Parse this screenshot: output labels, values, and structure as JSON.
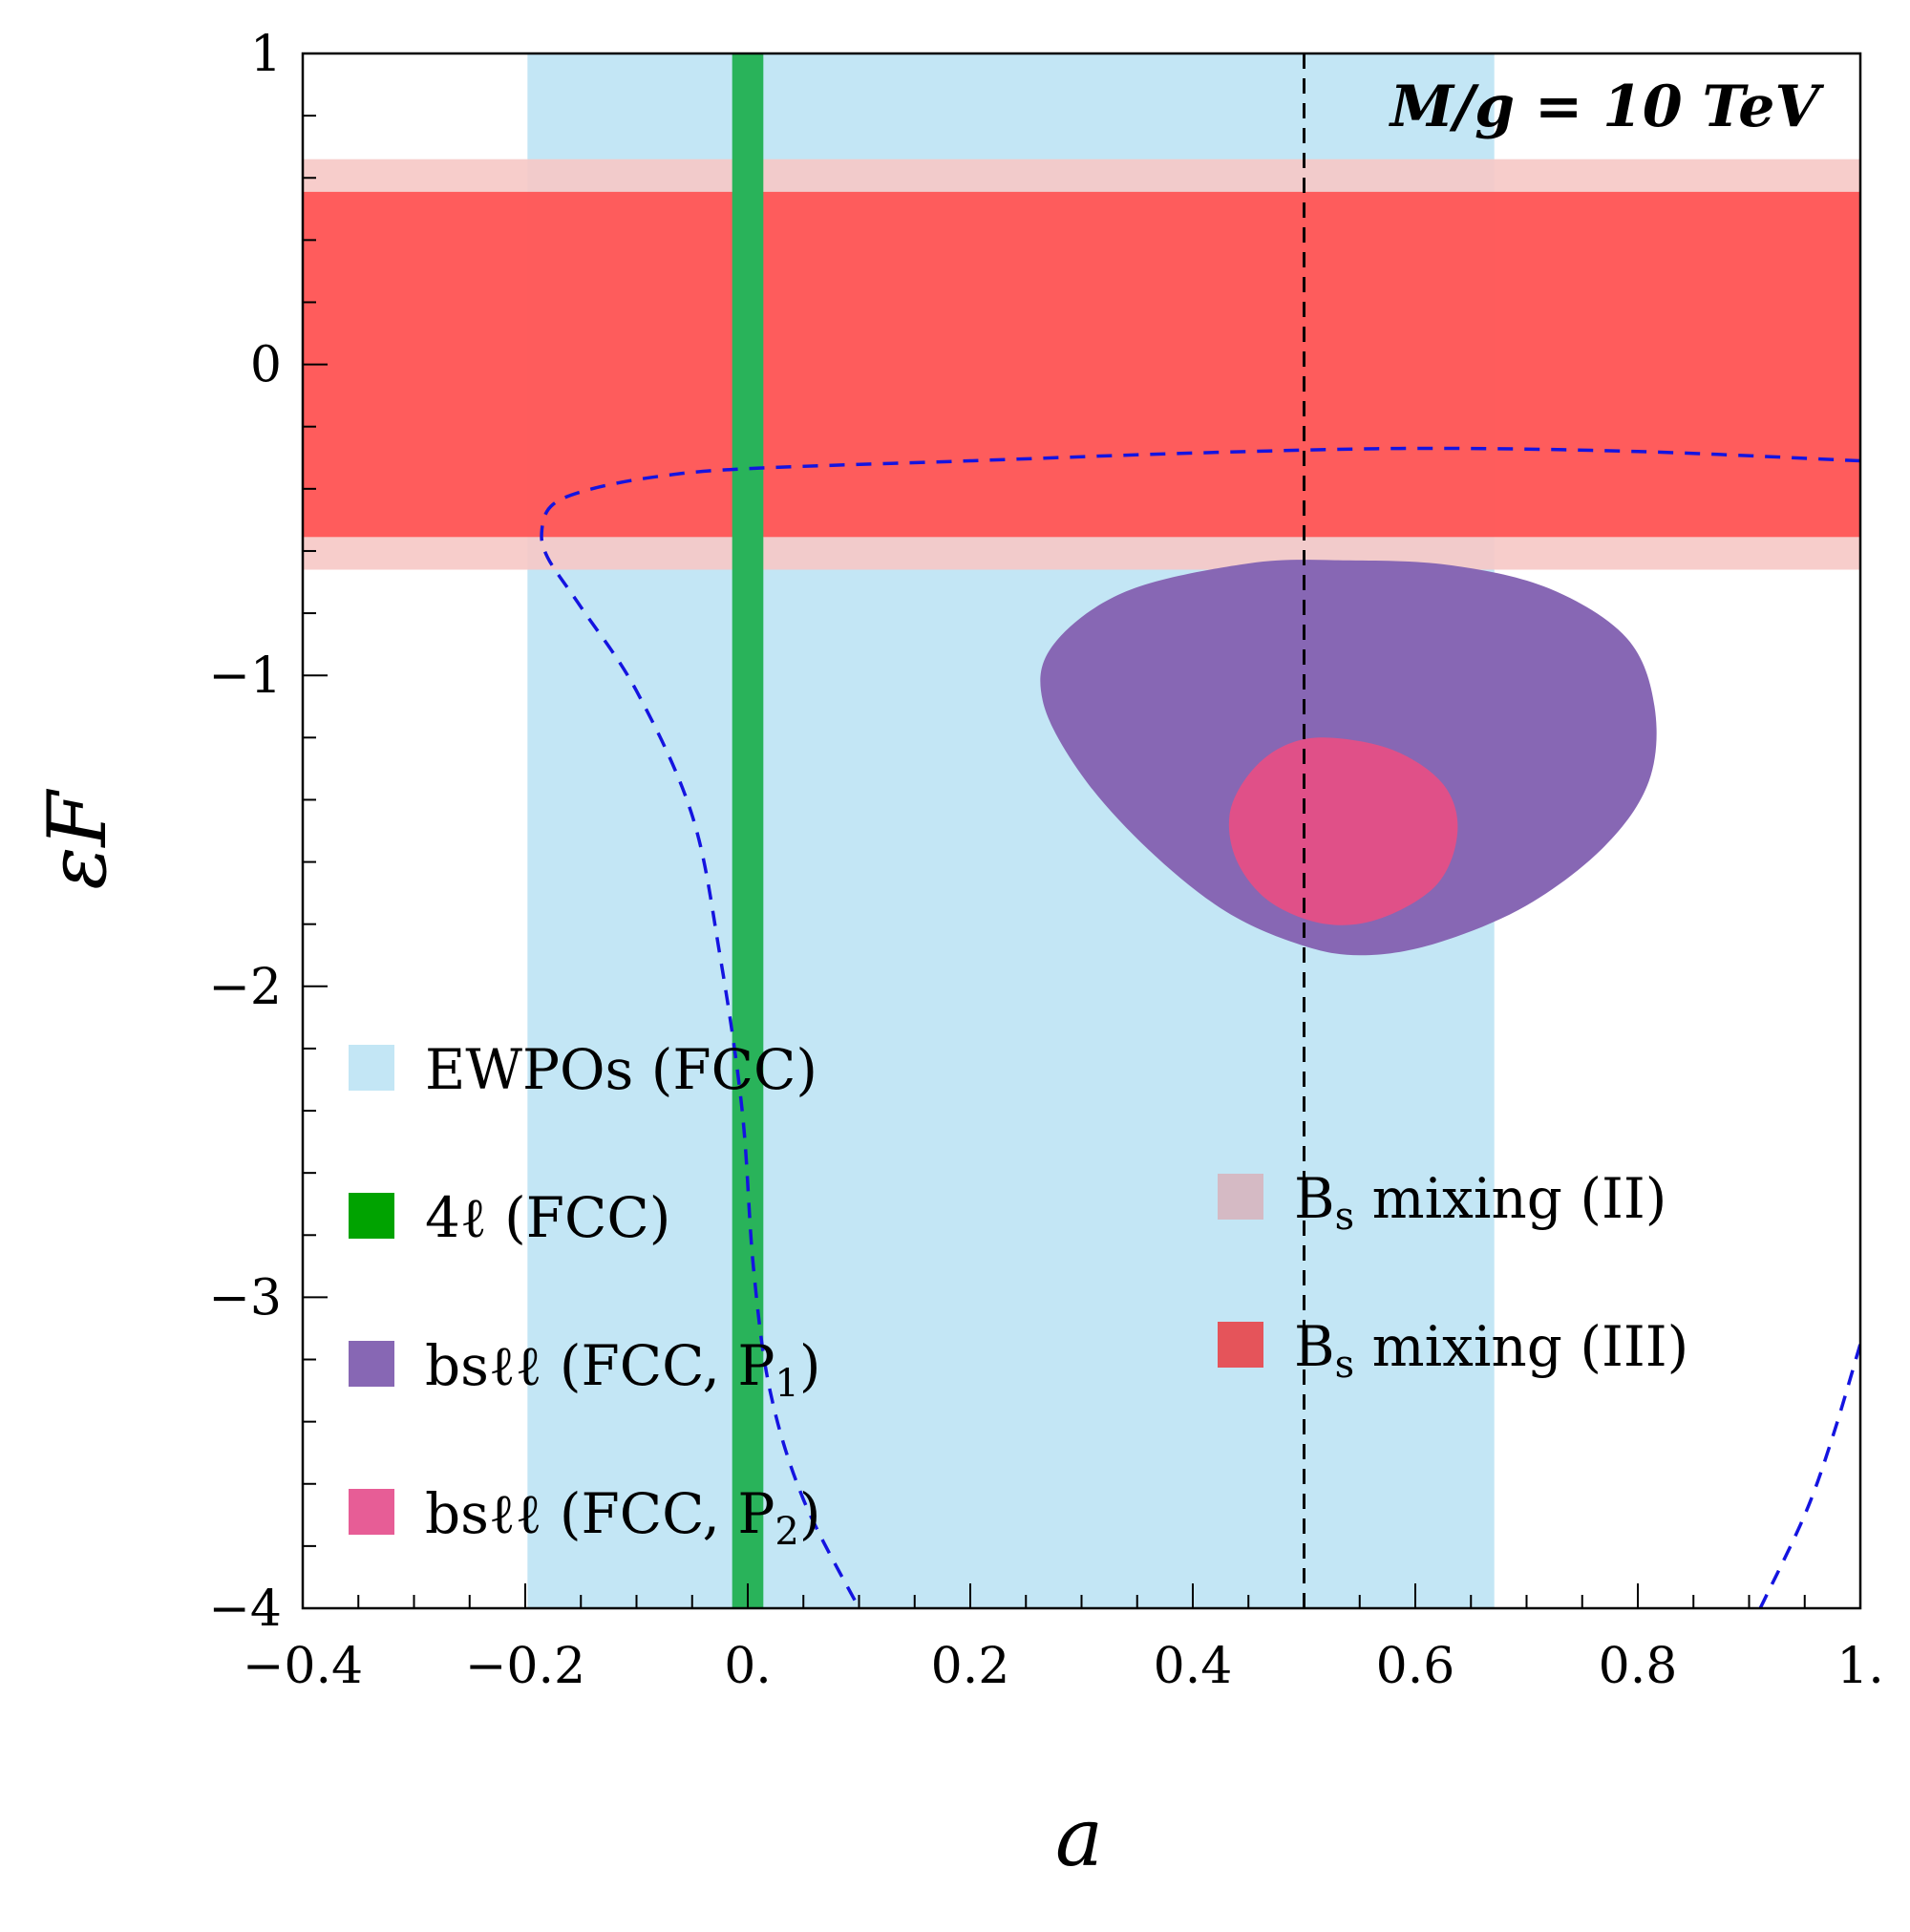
{
  "chart_data": {
    "type": "region",
    "title": "",
    "xlabel": "a",
    "ylabel": "εF",
    "xlim": [
      -0.4,
      1.0
    ],
    "ylim": [
      -4,
      1
    ],
    "x_ticks": [
      {
        "value": -0.4,
        "label": "−0.4"
      },
      {
        "value": -0.2,
        "label": "−0.2"
      },
      {
        "value": 0.0,
        "label": "0."
      },
      {
        "value": 0.2,
        "label": "0.2"
      },
      {
        "value": 0.4,
        "label": "0.4"
      },
      {
        "value": 0.6,
        "label": "0.6"
      },
      {
        "value": 0.8,
        "label": "0.8"
      },
      {
        "value": 1.0,
        "label": "1."
      }
    ],
    "y_ticks": [
      {
        "value": 1,
        "label": "1"
      },
      {
        "value": 0,
        "label": "0"
      },
      {
        "value": -1,
        "label": "−1"
      },
      {
        "value": -2,
        "label": "−2"
      },
      {
        "value": -3,
        "label": "−3"
      },
      {
        "value": -4,
        "label": "−4"
      }
    ],
    "annotation": "M/g = 10 TeV",
    "series": [
      {
        "name": "EWPOs (FCC)",
        "kind": "vband",
        "x_range": [
          -0.198,
          0.671
        ],
        "color": "#c3e6f5"
      },
      {
        "name": "Bs mixing (II)",
        "kind": "hband",
        "y_range": [
          -0.66,
          0.66
        ],
        "color": "#f6c9c7"
      },
      {
        "name": "Bs mixing (III)",
        "kind": "hband",
        "y_range": [
          -0.555,
          0.555
        ],
        "color": "#ff5352"
      },
      {
        "name": "4ℓ (FCC)",
        "kind": "vband",
        "x_range": [
          -0.014,
          0.014
        ],
        "color": "#29b35a"
      },
      {
        "name": "bsℓℓ (FCC, P1)",
        "kind": "region",
        "color": "#8767b4",
        "boundary": [
          [
            0.535,
            -0.63
          ],
          [
            0.45,
            -0.64
          ],
          [
            0.34,
            -0.73
          ],
          [
            0.275,
            -0.9
          ],
          [
            0.265,
            -1.08
          ],
          [
            0.3,
            -1.32
          ],
          [
            0.36,
            -1.56
          ],
          [
            0.43,
            -1.76
          ],
          [
            0.5,
            -1.87
          ],
          [
            0.555,
            -1.9
          ],
          [
            0.62,
            -1.86
          ],
          [
            0.7,
            -1.74
          ],
          [
            0.77,
            -1.55
          ],
          [
            0.81,
            -1.34
          ],
          [
            0.815,
            -1.1
          ],
          [
            0.79,
            -0.88
          ],
          [
            0.72,
            -0.72
          ],
          [
            0.63,
            -0.645
          ]
        ]
      },
      {
        "name": "bsℓℓ (FCC, P2)",
        "kind": "region",
        "color": "#e05088",
        "boundary": [
          [
            0.52,
            -1.2
          ],
          [
            0.48,
            -1.23
          ],
          [
            0.45,
            -1.32
          ],
          [
            0.433,
            -1.45
          ],
          [
            0.44,
            -1.6
          ],
          [
            0.47,
            -1.73
          ],
          [
            0.52,
            -1.8
          ],
          [
            0.57,
            -1.78
          ],
          [
            0.62,
            -1.67
          ],
          [
            0.638,
            -1.5
          ],
          [
            0.625,
            -1.35
          ],
          [
            0.58,
            -1.24
          ]
        ]
      },
      {
        "name": "dashed contour (left)",
        "kind": "curve",
        "color": "#1414e0",
        "points": [
          [
            1.0,
            -0.31
          ],
          [
            0.8,
            -0.28
          ],
          [
            0.6,
            -0.27
          ],
          [
            0.4,
            -0.285
          ],
          [
            0.2,
            -0.31
          ],
          [
            0.0,
            -0.335
          ],
          [
            -0.08,
            -0.36
          ],
          [
            -0.14,
            -0.4
          ],
          [
            -0.175,
            -0.45
          ],
          [
            -0.185,
            -0.53
          ],
          [
            -0.18,
            -0.62
          ],
          [
            -0.15,
            -0.78
          ],
          [
            -0.1,
            -1.05
          ],
          [
            -0.05,
            -1.45
          ],
          [
            -0.025,
            -1.9
          ],
          [
            -0.005,
            -2.4
          ],
          [
            0.005,
            -2.9
          ],
          [
            0.02,
            -3.3
          ],
          [
            0.05,
            -3.65
          ],
          [
            0.1,
            -4.0
          ]
        ]
      },
      {
        "name": "dashed contour (right)",
        "kind": "curve",
        "color": "#1414e0",
        "points": [
          [
            0.91,
            -4.0
          ],
          [
            0.95,
            -3.7
          ],
          [
            0.975,
            -3.45
          ],
          [
            1.0,
            -3.15
          ]
        ]
      },
      {
        "name": "a = 0.5",
        "kind": "vline",
        "x": 0.5,
        "color": "#000000"
      }
    ],
    "legend": {
      "left": [
        {
          "label": "EWPOs (FCC)",
          "color": "#c3e6f5"
        },
        {
          "label": "4ℓ (FCC)",
          "color": "#00a300"
        },
        {
          "label": "bsℓℓ (FCC, P",
          "sub": "1",
          "close": ")",
          "color": "#8767b4"
        },
        {
          "label": "bsℓℓ (FCC, P",
          "sub": "2",
          "close": ")",
          "color": "#e75d96"
        }
      ],
      "right": [
        {
          "label": "B",
          "sub": "s",
          "rest": " mixing (II)",
          "color": "#d5bac4"
        },
        {
          "label": "B",
          "sub": "s",
          "rest": " mixing (III)",
          "color": "#e5545a"
        }
      ]
    }
  }
}
